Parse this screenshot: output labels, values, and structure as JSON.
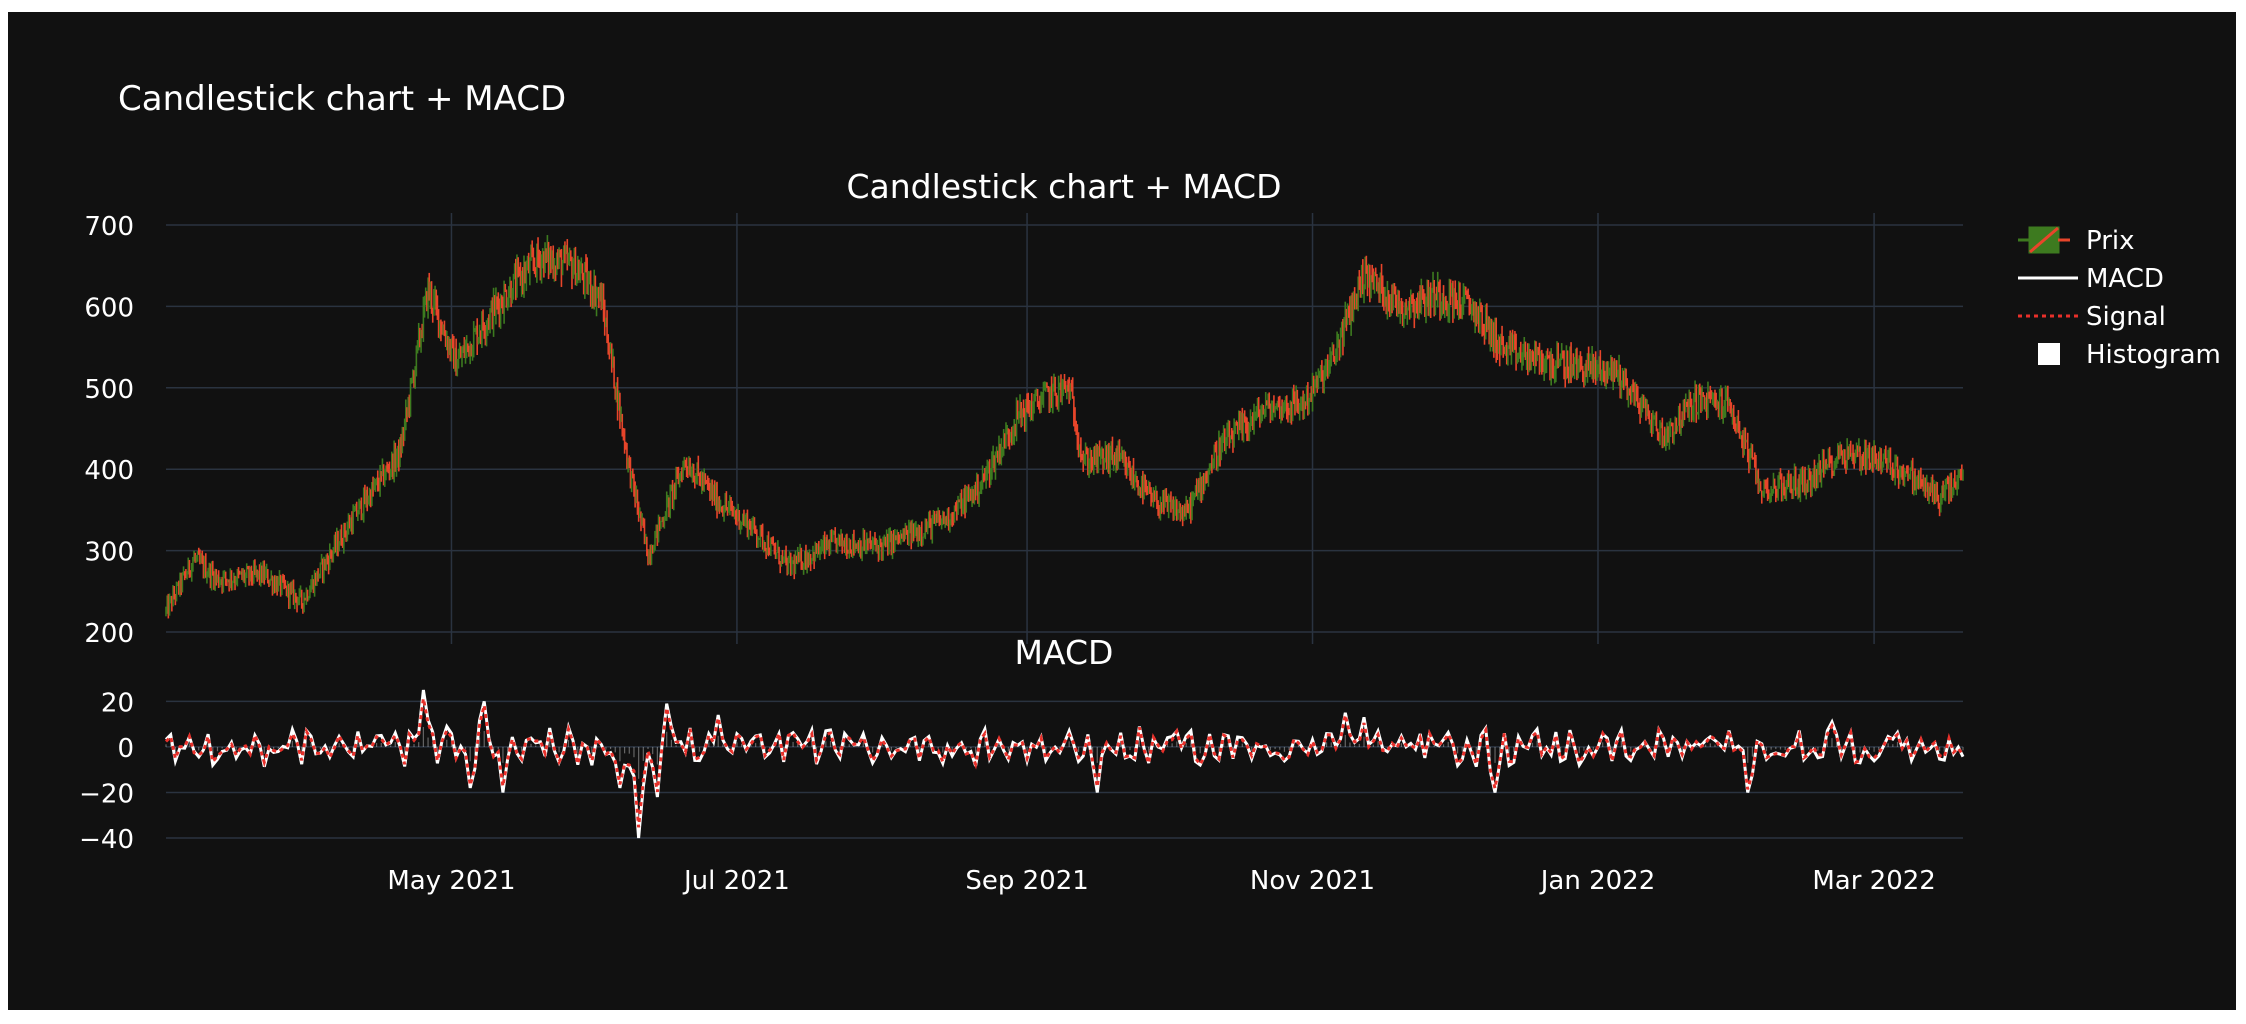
{
  "page_title": "Candlestick chart + MACD",
  "chart_data": [
    {
      "type": "candlestick",
      "title": "Candlestick chart + MACD",
      "series_name": "Prix",
      "ylim": [
        200,
        700
      ],
      "yticks": [
        200,
        300,
        400,
        500,
        600,
        700
      ],
      "increasing_color": "#3d7a1f",
      "decreasing_color": "#e8452a",
      "anchors": [
        [
          "2021-03-01",
          225
        ],
        [
          "2021-03-07",
          290
        ],
        [
          "2021-03-12",
          265
        ],
        [
          "2021-03-22",
          270
        ],
        [
          "2021-03-30",
          238
        ],
        [
          "2021-04-10",
          340
        ],
        [
          "2021-04-20",
          420
        ],
        [
          "2021-04-26",
          620
        ],
        [
          "2021-05-02",
          530
        ],
        [
          "2021-05-08",
          580
        ],
        [
          "2021-05-14",
          625
        ],
        [
          "2021-05-20",
          660
        ],
        [
          "2021-05-27",
          650
        ],
        [
          "2021-06-02",
          610
        ],
        [
          "2021-06-08",
          400
        ],
        [
          "2021-06-12",
          295
        ],
        [
          "2021-06-20",
          410
        ],
        [
          "2021-06-27",
          360
        ],
        [
          "2021-07-04",
          330
        ],
        [
          "2021-07-12",
          280
        ],
        [
          "2021-07-22",
          310
        ],
        [
          "2021-08-01",
          305
        ],
        [
          "2021-08-15",
          340
        ],
        [
          "2021-08-22",
          380
        ],
        [
          "2021-08-30",
          465
        ],
        [
          "2021-09-05",
          490
        ],
        [
          "2021-09-10",
          500
        ],
        [
          "2021-09-13",
          410
        ],
        [
          "2021-09-20",
          415
        ],
        [
          "2021-09-28",
          360
        ],
        [
          "2021-10-05",
          345
        ],
        [
          "2021-10-12",
          425
        ],
        [
          "2021-10-22",
          475
        ],
        [
          "2021-10-30",
          480
        ],
        [
          "2021-11-05",
          530
        ],
        [
          "2021-11-12",
          640
        ],
        [
          "2021-11-20",
          600
        ],
        [
          "2021-11-28",
          615
        ],
        [
          "2021-12-05",
          600
        ],
        [
          "2021-12-12",
          545
        ],
        [
          "2021-12-22",
          530
        ],
        [
          "2022-01-05",
          520
        ],
        [
          "2022-01-15",
          440
        ],
        [
          "2022-01-22",
          485
        ],
        [
          "2022-01-29",
          480
        ],
        [
          "2022-02-05",
          375
        ],
        [
          "2022-02-15",
          385
        ],
        [
          "2022-02-22",
          420
        ],
        [
          "2022-03-01",
          415
        ],
        [
          "2022-03-08",
          395
        ],
        [
          "2022-03-15",
          365
        ],
        [
          "2022-03-20",
          390
        ]
      ]
    },
    {
      "type": "line",
      "title": "MACD",
      "series": [
        {
          "name": "MACD",
          "color": "#ffffff",
          "dash": "solid"
        },
        {
          "name": "Signal",
          "color": "#e8302a",
          "dash": "dot"
        },
        {
          "name": "Histogram",
          "color": "#ffffff",
          "type": "bar"
        }
      ],
      "ylim": [
        -40,
        25
      ],
      "yticks": [
        -40,
        -20,
        0,
        20
      ],
      "spikes": [
        [
          "2021-04-25",
          25
        ],
        [
          "2021-05-05",
          -18
        ],
        [
          "2021-05-08",
          20
        ],
        [
          "2021-05-12",
          -20
        ],
        [
          "2021-06-06",
          -18
        ],
        [
          "2021-06-10",
          -40
        ],
        [
          "2021-06-14",
          -22
        ],
        [
          "2021-06-16",
          19
        ],
        [
          "2021-06-27",
          14
        ],
        [
          "2021-09-16",
          -20
        ],
        [
          "2021-11-08",
          15
        ],
        [
          "2021-11-12",
          13
        ],
        [
          "2021-12-10",
          -20
        ],
        [
          "2022-02-02",
          -20
        ],
        [
          "2022-02-20",
          11
        ]
      ]
    }
  ],
  "xaxis": {
    "range": [
      "2021-03-01",
      "2022-03-20"
    ],
    "ticks": [
      {
        "date": "2021-05-01",
        "label": "May 2021"
      },
      {
        "date": "2021-07-01",
        "label": "Jul 2021"
      },
      {
        "date": "2021-09-01",
        "label": "Sep 2021"
      },
      {
        "date": "2021-11-01",
        "label": "Nov 2021"
      },
      {
        "date": "2022-01-01",
        "label": "Jan 2022"
      },
      {
        "date": "2022-03-01",
        "label": "Mar 2022"
      }
    ]
  },
  "legend": {
    "position": "top-right",
    "items": [
      {
        "label": "Prix",
        "symbol": "candle"
      },
      {
        "label": "MACD",
        "symbol": "line"
      },
      {
        "label": "Signal",
        "symbol": "dotted-line"
      },
      {
        "label": "Histogram",
        "symbol": "square"
      }
    ]
  },
  "colors": {
    "background": "#111111",
    "grid": "#2a3340",
    "text": "#ffffff"
  }
}
